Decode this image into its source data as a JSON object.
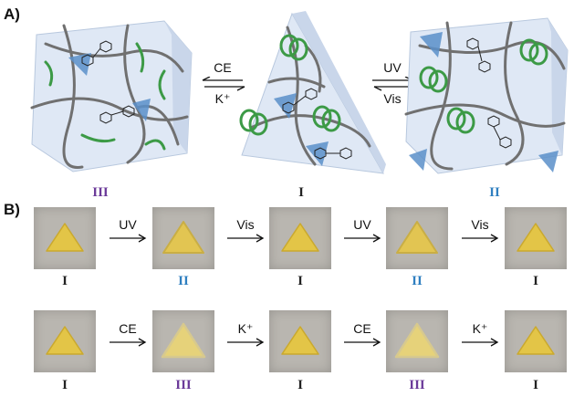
{
  "panel_a": {
    "label": "A)",
    "states": {
      "left": "III",
      "center": "I",
      "right": "II"
    },
    "left_arrows": {
      "top": "CE",
      "bottom": "K⁺"
    },
    "right_arrows": {
      "top": "UV",
      "bottom": "Vis"
    }
  },
  "panel_b": {
    "label": "B)",
    "row1": {
      "states": [
        "I",
        "II",
        "I",
        "II",
        "I"
      ],
      "arrows": [
        "UV",
        "Vis",
        "UV",
        "Vis"
      ]
    },
    "row2": {
      "states": [
        "I",
        "III",
        "I",
        "III",
        "I"
      ],
      "arrows": [
        "CE",
        "K⁺",
        "CE",
        "K⁺"
      ]
    }
  },
  "colors": {
    "state_I": "#222222",
    "state_II": "#2f7fc0",
    "state_III": "#6b3a99",
    "gel": "#dfe8f5",
    "fiber": "#707070",
    "crown_ether": "#5b8fc9",
    "helix": "#3c9a46"
  }
}
